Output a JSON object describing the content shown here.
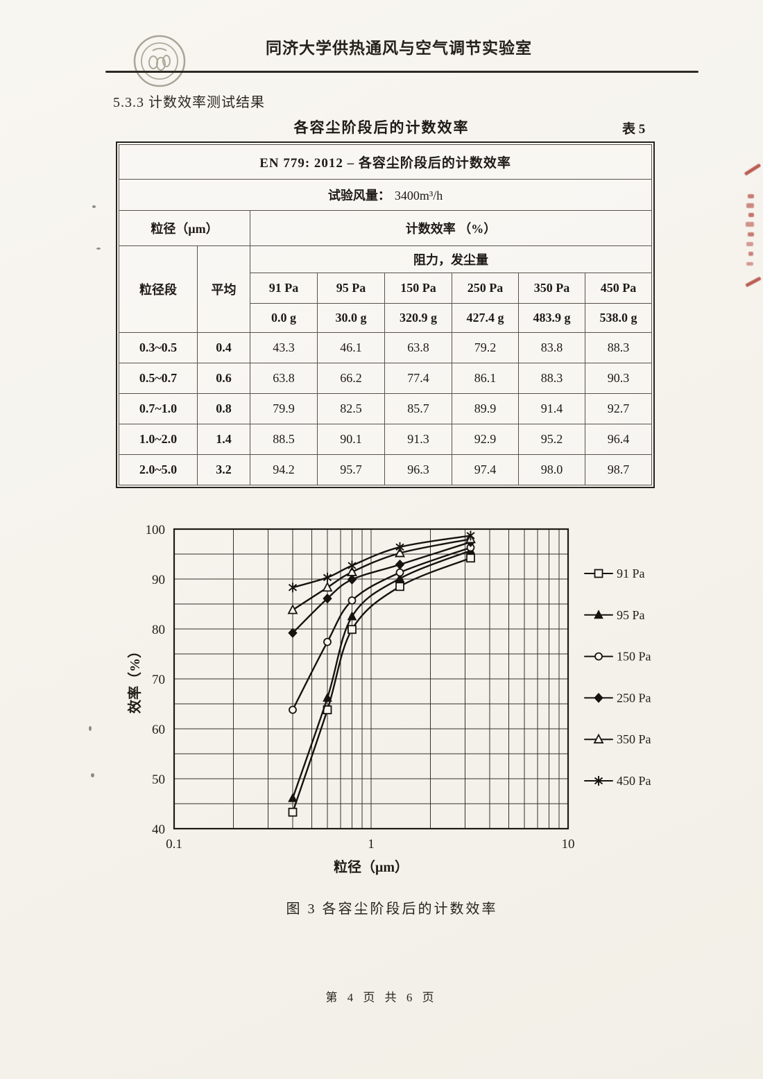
{
  "page": {
    "header_title": "同济大学供热通风与空气调节实验室",
    "section_heading": "5.3.3  计数效率测试结果",
    "table_title": "各容尘阶段后的计数效率",
    "table_number": "表 5",
    "figure_caption": "图 3  各容尘阶段后的计数效率",
    "footer": "第 4 页  共 6 页"
  },
  "table": {
    "standard_row": "EN 779: 2012 –  各容尘阶段后的计数效率",
    "airflow_label": "试验风量：",
    "airflow_value": "3400m³/h",
    "particle_size_header": "粒径（μm）",
    "efficiency_header": "计数效率 （%）",
    "resistance_header": "阻力，发尘量",
    "size_range_header": "粒径段",
    "average_header": "平均",
    "pressures": [
      "91 Pa",
      "95 Pa",
      "150 Pa",
      "250 Pa",
      "350 Pa",
      "450 Pa"
    ],
    "dust_loads": [
      "0.0 g",
      "30.0 g",
      "320.9 g",
      "427.4 g",
      "483.9 g",
      "538.0 g"
    ],
    "rows": [
      {
        "range": "0.3~0.5",
        "avg": "0.4",
        "values": [
          "43.3",
          "46.1",
          "63.8",
          "79.2",
          "83.8",
          "88.3"
        ]
      },
      {
        "range": "0.5~0.7",
        "avg": "0.6",
        "values": [
          "63.8",
          "66.2",
          "77.4",
          "86.1",
          "88.3",
          "90.3"
        ]
      },
      {
        "range": "0.7~1.0",
        "avg": "0.8",
        "values": [
          "79.9",
          "82.5",
          "85.7",
          "89.9",
          "91.4",
          "92.7"
        ]
      },
      {
        "range": "1.0~2.0",
        "avg": "1.4",
        "values": [
          "88.5",
          "90.1",
          "91.3",
          "92.9",
          "95.2",
          "96.4"
        ]
      },
      {
        "range": "2.0~5.0",
        "avg": "3.2",
        "values": [
          "94.2",
          "95.7",
          "96.3",
          "97.4",
          "98.0",
          "98.7"
        ]
      }
    ]
  },
  "chart_data": {
    "type": "line",
    "x": [
      0.4,
      0.6,
      0.8,
      1.4,
      3.2
    ],
    "series": [
      {
        "name": "91 Pa",
        "marker": "square-open",
        "values": [
          43.3,
          63.8,
          79.9,
          88.5,
          94.2
        ]
      },
      {
        "name": "95 Pa",
        "marker": "triangle-filled",
        "values": [
          46.1,
          66.2,
          82.5,
          90.1,
          95.7
        ]
      },
      {
        "name": "150 Pa",
        "marker": "circle-open",
        "values": [
          63.8,
          77.4,
          85.7,
          91.3,
          96.3
        ]
      },
      {
        "name": "250 Pa",
        "marker": "diamond-filled",
        "values": [
          79.2,
          86.1,
          89.9,
          92.9,
          97.4
        ]
      },
      {
        "name": "350 Pa",
        "marker": "triangle-open",
        "values": [
          83.8,
          88.3,
          91.4,
          95.2,
          98.0
        ]
      },
      {
        "name": "450 Pa",
        "marker": "star",
        "values": [
          88.3,
          90.3,
          92.7,
          96.4,
          98.7
        ]
      }
    ],
    "xlabel": "粒径（μm）",
    "ylabel": "效率（%）",
    "xscale": "log",
    "xlim": [
      0.1,
      10
    ],
    "ylim": [
      40,
      100
    ],
    "xticks": [
      "0.1",
      "1",
      "10"
    ],
    "yticks": [
      100,
      90,
      80,
      70,
      60,
      50,
      40
    ],
    "y_minor_step": 5,
    "grid": "both",
    "legend_position": "right",
    "ink_color": "#15130f"
  }
}
